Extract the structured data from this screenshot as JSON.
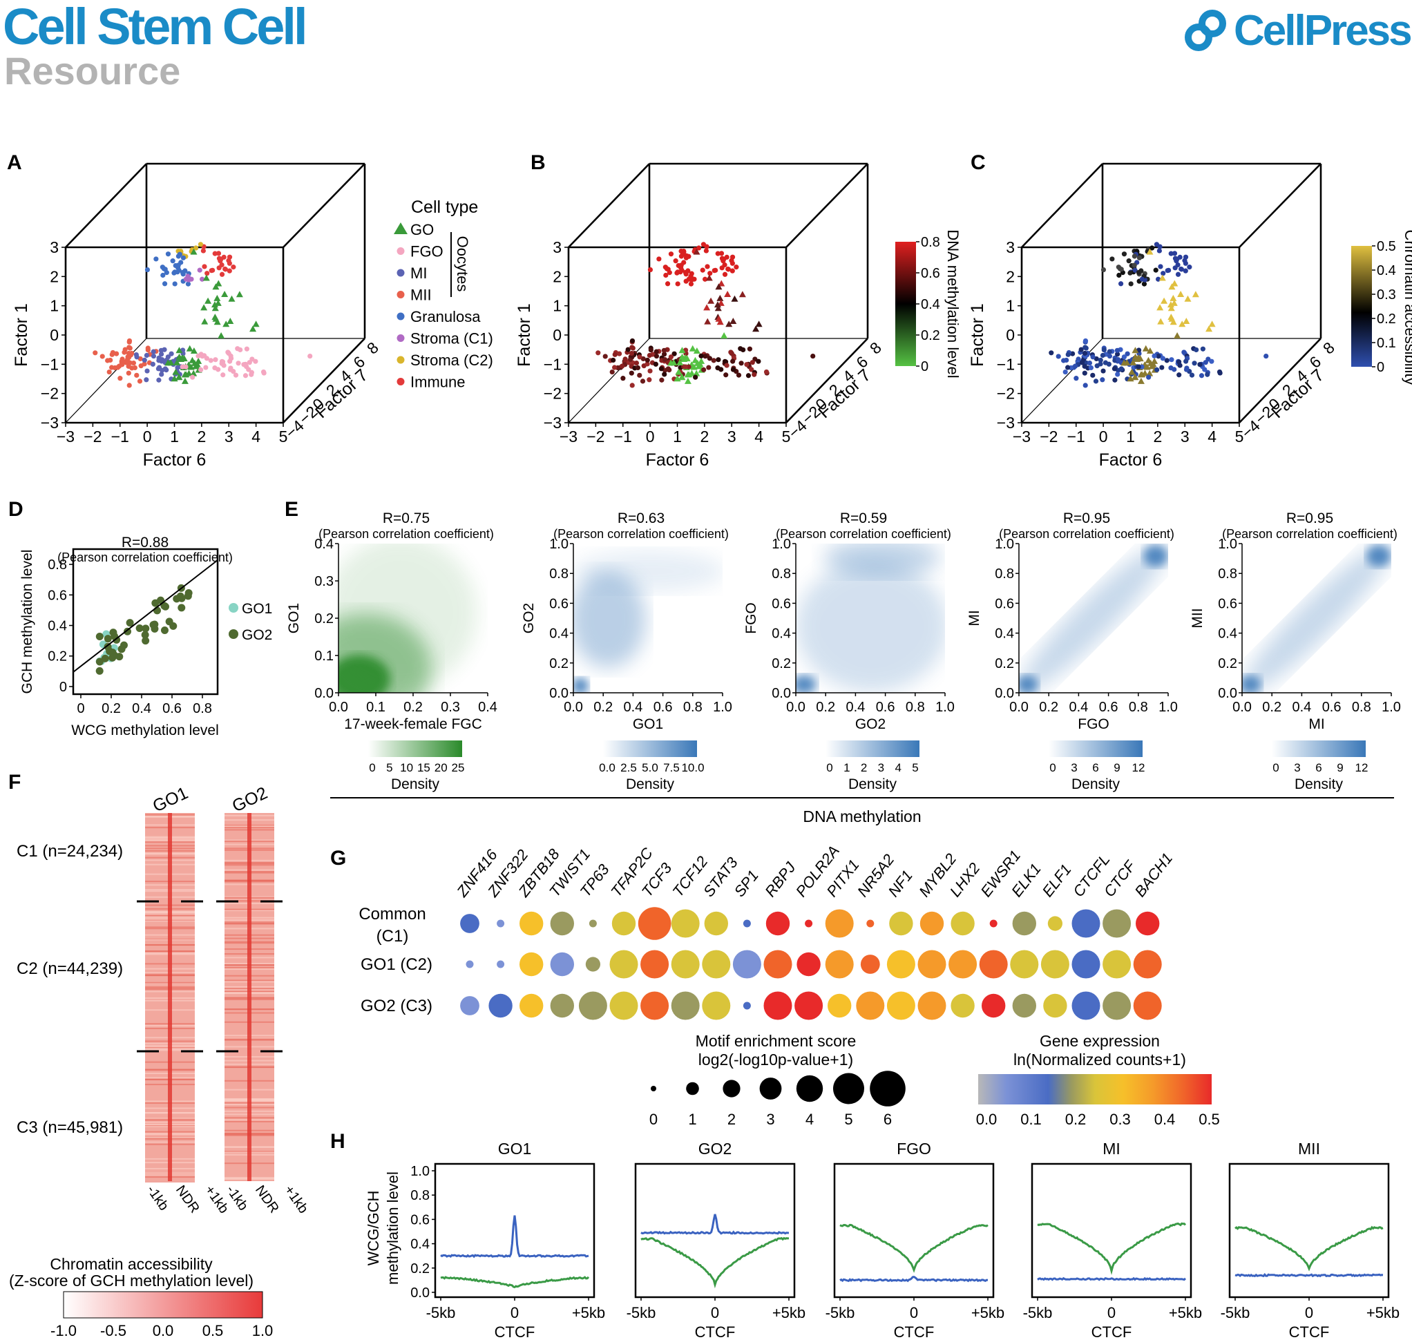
{
  "header": {
    "journal": "Cell Stem Cell",
    "section": "Resource",
    "publisher": "CellPress",
    "brand_color": "#1a8bc7",
    "section_color": "#b3b3b3"
  },
  "panels": {
    "A": {
      "label": "A",
      "xlabel": "Factor 6",
      "ylabel": "Factor 1",
      "zlabel": "Factor 7",
      "legend_title": "Cell type",
      "oocytes_label": "Oocytes",
      "legend": [
        {
          "name": "GO",
          "color": "#3a9a3a",
          "marker": "triangle"
        },
        {
          "name": "FGO",
          "color": "#f4a6c0",
          "marker": "circle"
        },
        {
          "name": "MI",
          "color": "#5b63b3",
          "marker": "circle"
        },
        {
          "name": "MII",
          "color": "#e8604c",
          "marker": "circle"
        },
        {
          "name": "Granulosa",
          "color": "#3f6fc4",
          "marker": "circle"
        },
        {
          "name": "Stroma (C1)",
          "color": "#b06ac4",
          "marker": "circle"
        },
        {
          "name": "Stroma (C2)",
          "color": "#d9b52c",
          "marker": "circle"
        },
        {
          "name": "Immune",
          "color": "#e33a3a",
          "marker": "circle"
        }
      ]
    },
    "B": {
      "label": "B",
      "xlabel": "Factor 6",
      "ylabel": "Factor 1",
      "zlabel": "Factor 7",
      "colorbar_title": "DNA methylation level",
      "colorbar_ticks": [
        "0",
        "0.2",
        "0.4",
        "0.6",
        "0.8"
      ],
      "colors": [
        "#55c243",
        "#000000",
        "#e02020"
      ]
    },
    "C": {
      "label": "C",
      "xlabel": "Factor 6",
      "ylabel": "Factor 1",
      "zlabel": "Factor 7",
      "colorbar_title": "Chromatin accessibility",
      "colorbar_ticks": [
        "0",
        "0.1",
        "0.2",
        "0.3",
        "0.4",
        "0.5"
      ],
      "colors": [
        "#2f4fb0",
        "#000000",
        "#e0c040"
      ]
    },
    "D": {
      "label": "D",
      "title": "R=0.88",
      "subtitle": "(Pearson correlation coefficient)",
      "xlabel": "WCG methylation level",
      "ylabel": "GCH methylation level",
      "legend": [
        {
          "name": "GO1",
          "color": "#88d4c4"
        },
        {
          "name": "GO2",
          "color": "#4f6a30"
        }
      ]
    },
    "E": {
      "label": "E",
      "colorbar_title": "Density",
      "subtitle": "(Pearson correlation coefficient)",
      "plots": [
        {
          "title": "R=0.75",
          "xlabel": "17-week-female FGC",
          "ylabel": "GO1",
          "range": [
            0,
            0.4
          ],
          "ticks": [
            "0.0",
            "0.1",
            "0.2",
            "0.3",
            "0.4"
          ],
          "cb_ticks": [
            "0",
            "5",
            "10",
            "15",
            "20",
            "25"
          ],
          "color": "#2a8a2a"
        },
        {
          "title": "R=0.63",
          "xlabel": "GO1",
          "ylabel": "GO2",
          "range": [
            0,
            1
          ],
          "ticks": [
            "0.0",
            "0.2",
            "0.4",
            "0.6",
            "0.8",
            "1.0"
          ],
          "cb_ticks": [
            "0.0",
            "2.5",
            "5.0",
            "7.5",
            "10.0"
          ],
          "color": "#3a78b8"
        },
        {
          "title": "R=0.59",
          "xlabel": "GO2",
          "ylabel": "FGO",
          "range": [
            0,
            1
          ],
          "ticks": [
            "0.0",
            "0.2",
            "0.4",
            "0.6",
            "0.8",
            "1.0"
          ],
          "cb_ticks": [
            "0",
            "1",
            "2",
            "3",
            "4",
            "5"
          ],
          "color": "#3a78b8"
        },
        {
          "title": "R=0.95",
          "xlabel": "FGO",
          "ylabel": "MI",
          "range": [
            0,
            1
          ],
          "ticks": [
            "0.0",
            "0.2",
            "0.4",
            "0.6",
            "0.8",
            "1.0"
          ],
          "cb_ticks": [
            "0",
            "3",
            "6",
            "9",
            "12"
          ],
          "color": "#3a78b8"
        },
        {
          "title": "R=0.95",
          "xlabel": "MI",
          "ylabel": "MII",
          "range": [
            0,
            1
          ],
          "ticks": [
            "0.0",
            "0.2",
            "0.4",
            "0.6",
            "0.8",
            "1.0"
          ],
          "cb_ticks": [
            "0",
            "3",
            "6",
            "9",
            "12"
          ],
          "color": "#3a78b8"
        }
      ],
      "footer": "DNA methylation"
    },
    "F": {
      "label": "F",
      "columns": [
        "GO1",
        "GO2"
      ],
      "clusters": [
        "C1 (n=24,234)",
        "C2 (n=44,239)",
        "C3 (n=45,981)"
      ],
      "xticks": [
        "-1kb",
        "NDR",
        "+1kb"
      ],
      "colorbar_title_1": "Chromatin accessibility",
      "colorbar_title_2": "(Z-score of GCH methylation level)",
      "colorbar_ticks": [
        "-1.0",
        "-0.5",
        "0.0",
        "0.5",
        "1.0"
      ],
      "colors": [
        "#ffffff",
        "#e83a3a"
      ]
    },
    "G": {
      "label": "G",
      "genes": [
        "ZNF416",
        "ZNF322",
        "ZBTB18",
        "TWIST1",
        "TP63",
        "TFAP2C",
        "TCF3",
        "TCF12",
        "STAT3",
        "SP1",
        "RBPJ",
        "POLR2A",
        "PITX1",
        "NR5A2",
        "NF1",
        "MYBL2",
        "LHX2",
        "EWSR1",
        "ELK1",
        "ELF1",
        "CTCFL",
        "CTCF",
        "BACH1"
      ],
      "rows": [
        "Common (C1)",
        "GO1 (C2)",
        "GO2 (C3)"
      ],
      "size_legend_title": "Motif enrichment score",
      "size_legend_subtitle": "log2(-log10p-value+1)",
      "size_legend_values": [
        "0",
        "1",
        "2",
        "3",
        "4",
        "5",
        "6"
      ],
      "color_legend_title": "Gene expression",
      "color_legend_subtitle": "ln(Normalized counts+1)",
      "color_legend_ticks": [
        "0.0",
        "0.1",
        "0.2",
        "0.3",
        "0.4",
        "0.5"
      ],
      "color_legend_colors": [
        "#b8b8b8",
        "#7c92d6",
        "#4a6cc4",
        "#9a9a60",
        "#d9c43a",
        "#f6c02a",
        "#f59a2a",
        "#f0642a",
        "#e82a2a"
      ],
      "dots": [
        [
          [
            3,
            0.1
          ],
          [
            1,
            0.05
          ],
          [
            4,
            0.3
          ],
          [
            4,
            0.16
          ],
          [
            1,
            0.19
          ],
          [
            4,
            0.25
          ],
          [
            6,
            0.41
          ],
          [
            5,
            0.24
          ],
          [
            4,
            0.22
          ],
          [
            1,
            0.1
          ],
          [
            4,
            0.47
          ],
          [
            1,
            0.5
          ],
          [
            5,
            0.37
          ],
          [
            1,
            0.42
          ],
          [
            4,
            0.27
          ],
          [
            4,
            0.39
          ],
          [
            4,
            0.28
          ],
          [
            1,
            0.5
          ],
          [
            4,
            0.2
          ],
          [
            2,
            0.24
          ],
          [
            5,
            0.1
          ],
          [
            5,
            0.2
          ],
          [
            4,
            0.47
          ]
        ],
        [
          [
            1,
            0.05
          ],
          [
            1,
            0.05
          ],
          [
            4,
            0.3
          ],
          [
            4,
            0.08
          ],
          [
            2,
            0.19
          ],
          [
            5,
            0.25
          ],
          [
            5,
            0.41
          ],
          [
            5,
            0.25
          ],
          [
            5,
            0.23
          ],
          [
            5,
            0.09
          ],
          [
            5,
            0.46
          ],
          [
            4,
            0.5
          ],
          [
            5,
            0.37
          ],
          [
            3,
            0.41
          ],
          [
            5,
            0.33
          ],
          [
            5,
            0.38
          ],
          [
            5,
            0.35
          ],
          [
            5,
            0.42
          ],
          [
            5,
            0.23
          ],
          [
            5,
            0.23
          ],
          [
            5,
            0.1
          ],
          [
            5,
            0.24
          ],
          [
            5,
            0.46
          ]
        ],
        [
          [
            3,
            0.08
          ],
          [
            4,
            0.1
          ],
          [
            4,
            0.3
          ],
          [
            4,
            0.19
          ],
          [
            5,
            0.19
          ],
          [
            5,
            0.27
          ],
          [
            5,
            0.42
          ],
          [
            5,
            0.19
          ],
          [
            5,
            0.22
          ],
          [
            1,
            0.1
          ],
          [
            5,
            0.47
          ],
          [
            5,
            0.48
          ],
          [
            4,
            0.33
          ],
          [
            5,
            0.4
          ],
          [
            5,
            0.3
          ],
          [
            5,
            0.37
          ],
          [
            4,
            0.28
          ],
          [
            4,
            0.48
          ],
          [
            4,
            0.16
          ],
          [
            4,
            0.24
          ],
          [
            5,
            0.1
          ],
          [
            5,
            0.18
          ],
          [
            5,
            0.46
          ]
        ]
      ]
    },
    "H": {
      "label": "H",
      "ylabel_1": "WCG/GCH",
      "ylabel_2": "methylation level",
      "xlabel": "CTCF",
      "xticks": [
        "-5kb",
        "0",
        "+5kb"
      ],
      "yticks": [
        "0.0",
        "0.2",
        "0.4",
        "0.6",
        "0.8",
        "1.0"
      ],
      "series_colors": {
        "GCH": "#3a62c0",
        "WCG": "#3a9a46"
      },
      "plots": [
        {
          "title": "GO1",
          "gch": {
            "flank": 0.3,
            "center": 0.63,
            "type": "peak"
          },
          "wcg": {
            "flank": 0.12,
            "center": 0.04,
            "type": "dip"
          }
        },
        {
          "title": "GO2",
          "gch": {
            "flank": 0.49,
            "center": 0.64,
            "type": "peak"
          },
          "wcg": {
            "flank": 0.44,
            "center": 0.06,
            "type": "dip"
          }
        },
        {
          "title": "FGO",
          "gch": {
            "flank": 0.1,
            "center": 0.13,
            "type": "peak"
          },
          "wcg": {
            "flank": 0.55,
            "center": 0.18,
            "type": "dip"
          }
        },
        {
          "title": "MI",
          "gch": {
            "flank": 0.11,
            "center": 0.12,
            "type": "flat"
          },
          "wcg": {
            "flank": 0.56,
            "center": 0.18,
            "type": "dip"
          }
        },
        {
          "title": "MII",
          "gch": {
            "flank": 0.14,
            "center": 0.14,
            "type": "flat"
          },
          "wcg": {
            "flank": 0.53,
            "center": 0.19,
            "type": "dip"
          }
        }
      ]
    }
  }
}
